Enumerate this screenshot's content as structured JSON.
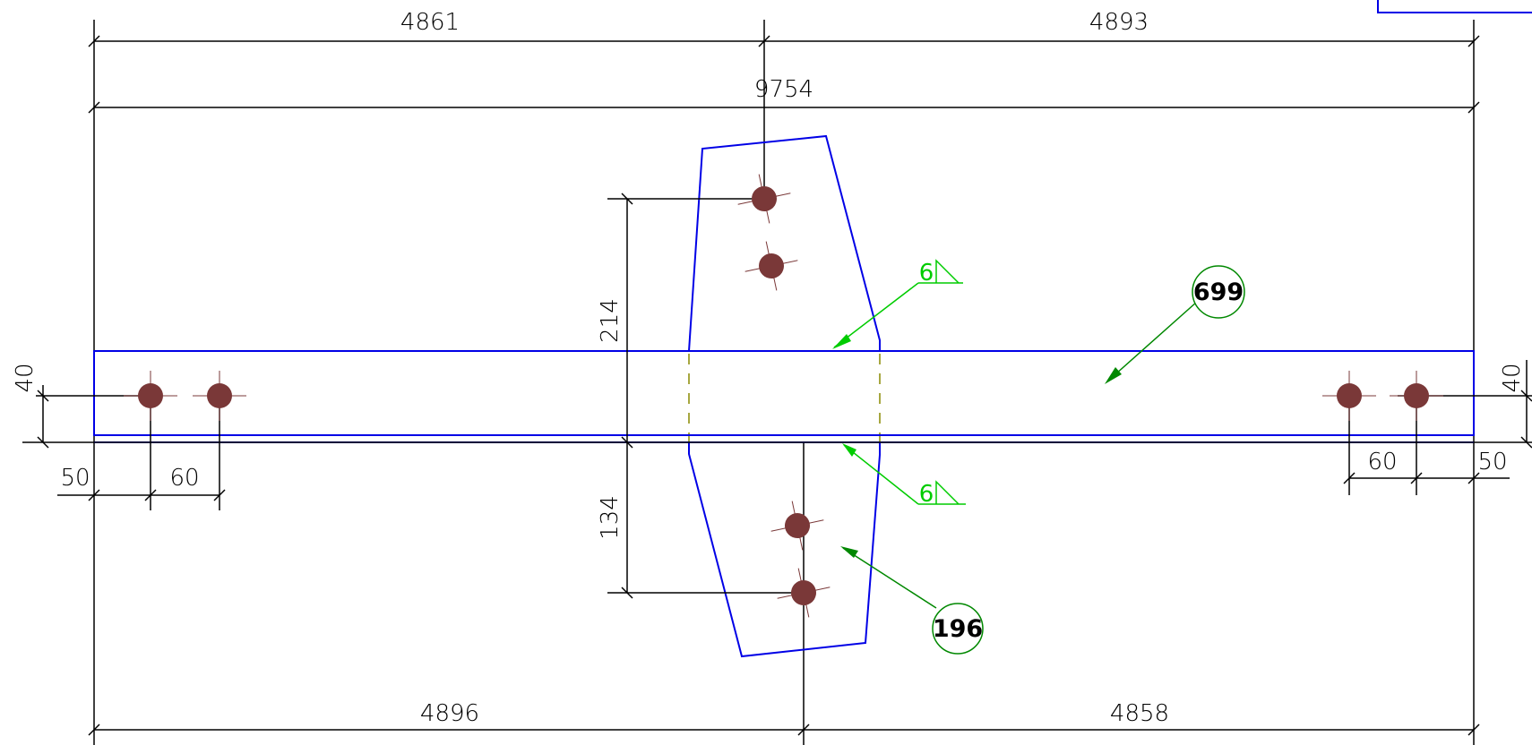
{
  "colors": {
    "dimension": "#000000",
    "outline": "#0000e6",
    "weld": "#00cc00",
    "leader": "#008800",
    "tag": "#008800",
    "hole": "#7a3838",
    "hidden": "#8a8a00"
  },
  "dimensions": {
    "top_left": "4861",
    "top_right": "4893",
    "overall": "9754",
    "bottom_left": "4896",
    "bottom_right": "4858",
    "gusset_upper": "214",
    "gusset_lower": "134",
    "edge_left": "40",
    "edge_right": "40",
    "end_left": "50",
    "pitch_left": "60",
    "pitch_right": "60",
    "end_right": "50"
  },
  "welds": {
    "upper_size": "6",
    "lower_size": "6"
  },
  "tags": {
    "beam": "699",
    "gusset": "196"
  },
  "icons": {
    "hole": "bolt-hole-icon",
    "weld": "fillet-weld-icon"
  }
}
